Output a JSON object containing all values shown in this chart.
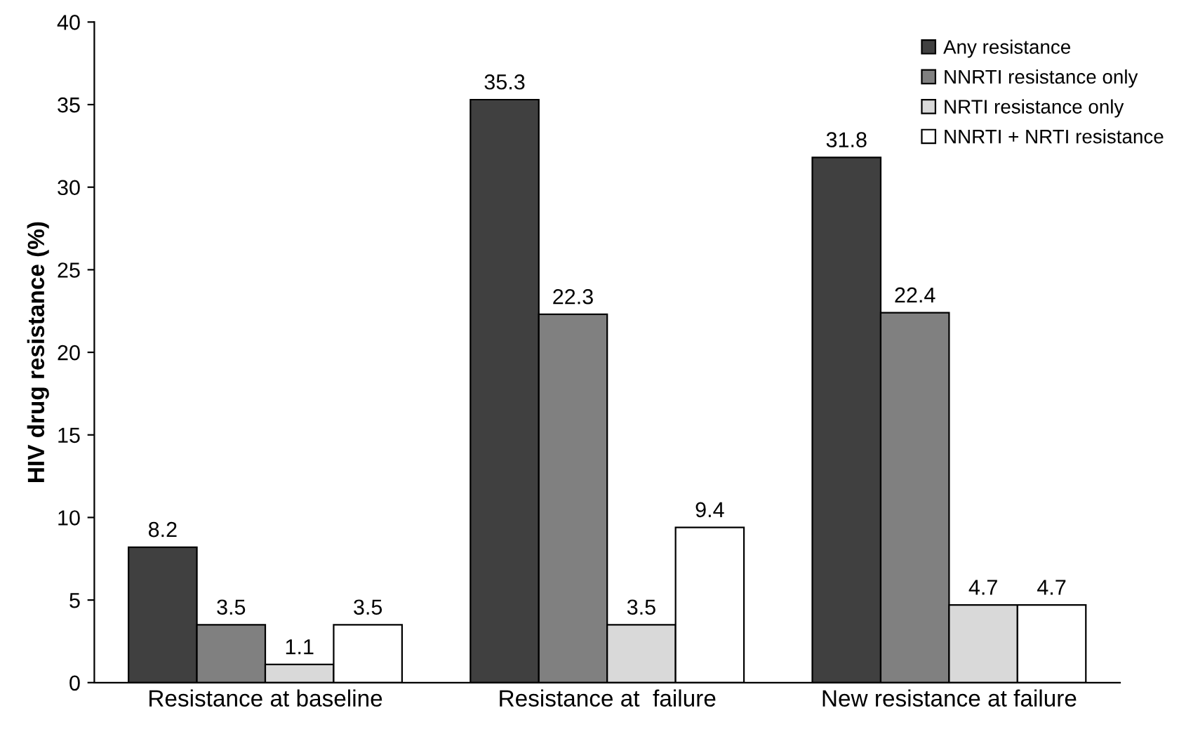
{
  "chart_data": {
    "type": "bar",
    "ylabel": "HIV drug resistance (%)",
    "categories": [
      "Resistance at baseline",
      "Resistance at  failure",
      "New resistance at failure"
    ],
    "series": [
      {
        "name": "Any resistance",
        "color": "#404040",
        "values": [
          8.2,
          35.3,
          31.8
        ]
      },
      {
        "name": "NNRTI resistance only",
        "color": "#808080",
        "values": [
          3.5,
          22.3,
          22.4
        ]
      },
      {
        "name": "NRTI resistance only",
        "color": "#d9d9d9",
        "values": [
          1.1,
          3.5,
          4.7
        ]
      },
      {
        "name": "NNRTI + NRTI resistance",
        "color": "#ffffff",
        "values": [
          3.5,
          9.4,
          4.7
        ]
      }
    ],
    "ylim": [
      0,
      40
    ],
    "yticks": [
      0,
      5,
      10,
      15,
      20,
      25,
      30,
      35,
      40
    ],
    "data_labels": true,
    "grid": false,
    "legend": "top right"
  }
}
